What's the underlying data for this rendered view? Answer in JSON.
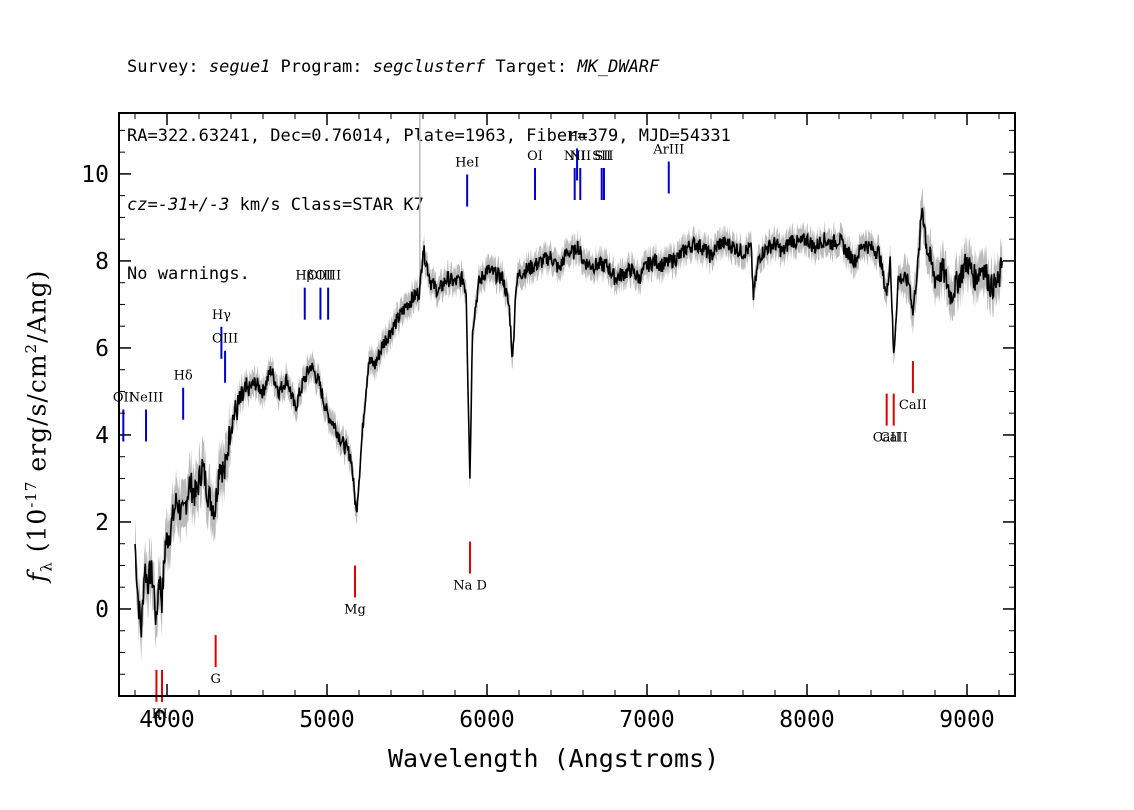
{
  "header": {
    "line1_a": "Survey: ",
    "survey": "segue1",
    "line1_b": " Program: ",
    "program": "segclusterf",
    "line1_c": " Target: ",
    "target": "MK_DWARF",
    "line2": "RA=322.63241, Dec=0.76014, Plate=1963, Fiber=379, MJD=54331",
    "line3_a": "cz=",
    "line3_cz": "-31+/-3",
    "line3_b": " km/s Class=STAR K7",
    "line4": "No warnings."
  },
  "axes": {
    "ylabel_main": "f",
    "ylabel_sub": "λ",
    "ylabel_rest": " (10",
    "ylabel_exp": "-17",
    "ylabel_unit": " erg/s/cm",
    "ylabel_exp2": "2",
    "ylabel_end": "/Ang)",
    "xlabel": "Wavelength (Angstroms)"
  },
  "chart_data": {
    "type": "line",
    "xlim": [
      3700,
      9300
    ],
    "ylim": [
      -2,
      11.4
    ],
    "xticks": [
      4000,
      5000,
      6000,
      7000,
      8000,
      9000
    ],
    "yticks": [
      0,
      2,
      4,
      6,
      8,
      10
    ],
    "grid": false,
    "colors": {
      "flux": "#000000",
      "error": "#bbbbbb",
      "emission": "#0000cc",
      "absorption": "#dd0000"
    },
    "series": [
      {
        "x": [
          3800,
          3820,
          3840,
          3860,
          3880,
          3900,
          3920,
          3933,
          3950,
          3968,
          3990,
          4020,
          4060,
          4101,
          4140,
          4180,
          4220,
          4260,
          4300,
          4330,
          4360,
          4400,
          4450,
          4500,
          4550,
          4600,
          4650,
          4700,
          4750,
          4800,
          4850,
          4900,
          4950,
          5000,
          5050,
          5100,
          5150,
          5183,
          5200,
          5230,
          5260,
          5300,
          5350,
          5400,
          5450,
          5500,
          5550,
          5580,
          5600,
          5650,
          5700,
          5750,
          5800,
          5850,
          5870,
          5893,
          5910,
          5950,
          6000,
          6050,
          6100,
          6140,
          6160,
          6180,
          6200,
          6250,
          6300,
          6350,
          6400,
          6450,
          6500,
          6550,
          6563,
          6600,
          6650,
          6700,
          6750,
          6800,
          6850,
          6900,
          6950,
          7000,
          7050,
          7100,
          7150,
          7200,
          7250,
          7300,
          7350,
          7400,
          7450,
          7500,
          7550,
          7600,
          7650,
          7665,
          7700,
          7750,
          7800,
          7850,
          7900,
          7950,
          8000,
          8050,
          8100,
          8150,
          8200,
          8250,
          8300,
          8350,
          8400,
          8450,
          8498,
          8520,
          8542,
          8570,
          8600,
          8640,
          8662,
          8700,
          8720,
          8750,
          8800,
          8850,
          8900,
          8950,
          9000,
          9050,
          9100,
          9150,
          9200,
          9220
        ],
        "values": [
          1.5,
          0.2,
          -0.5,
          1.0,
          0.6,
          0.9,
          0.4,
          -0.4,
          0.8,
          0.2,
          1.5,
          1.8,
          2.5,
          2.1,
          2.9,
          2.6,
          3.3,
          2.6,
          2.3,
          3.4,
          3.1,
          4.3,
          4.7,
          5.0,
          5.2,
          5.0,
          5.5,
          5.0,
          5.3,
          4.6,
          5.2,
          5.6,
          5.2,
          4.5,
          4.2,
          3.8,
          3.5,
          2.2,
          3.0,
          4.5,
          5.7,
          5.6,
          6.1,
          6.4,
          6.7,
          7.0,
          7.2,
          7.3,
          8.3,
          7.5,
          7.3,
          7.6,
          7.5,
          7.6,
          7.3,
          3.0,
          6.5,
          7.5,
          7.8,
          7.7,
          7.6,
          6.9,
          5.7,
          7.4,
          7.7,
          7.8,
          7.9,
          8.0,
          8.1,
          7.8,
          8.2,
          8.2,
          8.4,
          8.0,
          7.9,
          7.9,
          7.9,
          7.6,
          7.7,
          7.8,
          7.6,
          7.9,
          8.0,
          7.9,
          8.0,
          8.1,
          8.3,
          8.4,
          8.3,
          8.1,
          8.4,
          8.4,
          8.3,
          8.2,
          8.3,
          7.2,
          8.1,
          8.3,
          8.4,
          8.2,
          8.5,
          8.4,
          8.5,
          8.3,
          8.5,
          8.4,
          8.5,
          8.2,
          8.0,
          8.4,
          8.3,
          8.2,
          7.2,
          8.1,
          5.8,
          7.6,
          7.6,
          7.5,
          6.8,
          8.2,
          9.3,
          8.3,
          7.6,
          7.8,
          7.2,
          7.6,
          8.0,
          7.6,
          7.9,
          7.4,
          7.5,
          8.0
        ]
      }
    ],
    "emission_lines": [
      {
        "label": "OII",
        "x": 3727,
        "y": 3.85
      },
      {
        "label": "NeIII",
        "x": 3869,
        "y": 3.85
      },
      {
        "label": "Hδ",
        "x": 4101,
        "y": 4.35
      },
      {
        "label": "Hγ",
        "x": 4340,
        "y": 5.75
      },
      {
        "label": "OIII",
        "x": 4363,
        "y": 5.2
      },
      {
        "label": "Hβ",
        "x": 4861,
        "y": 6.65
      },
      {
        "label": "OIII",
        "x": 4959,
        "y": 6.65
      },
      {
        "label": "OIII",
        "x": 5007,
        "y": 6.65
      },
      {
        "label": "HeI",
        "x": 5876,
        "y": 9.25
      },
      {
        "label": "OI",
        "x": 6300,
        "y": 9.4
      },
      {
        "label": "NII",
        "x": 6548,
        "y": 9.4
      },
      {
        "label": "Hα",
        "x": 6563,
        "y": 9.85
      },
      {
        "label": "NII",
        "x": 6583,
        "y": 9.4
      },
      {
        "label": "SII",
        "x": 6717,
        "y": 9.4
      },
      {
        "label": "SII",
        "x": 6731,
        "y": 9.4
      },
      {
        "label": "ArIII",
        "x": 7136,
        "y": 9.55
      }
    ],
    "absorption_lines": [
      {
        "label": "K",
        "x": 3934,
        "y": -1.4
      },
      {
        "label": "H",
        "x": 3969,
        "y": -1.4
      },
      {
        "label": "G",
        "x": 4304,
        "y": -0.6
      },
      {
        "label": "Mg",
        "x": 5175,
        "y": 1.0
      },
      {
        "label": "Na D",
        "x": 5894,
        "y": 1.55
      },
      {
        "label": "CaII",
        "x": 8498,
        "y": 4.95
      },
      {
        "label": "CaII",
        "x": 8542,
        "y": 4.95
      },
      {
        "label": "CaII",
        "x": 8662,
        "y": 5.7
      }
    ]
  }
}
